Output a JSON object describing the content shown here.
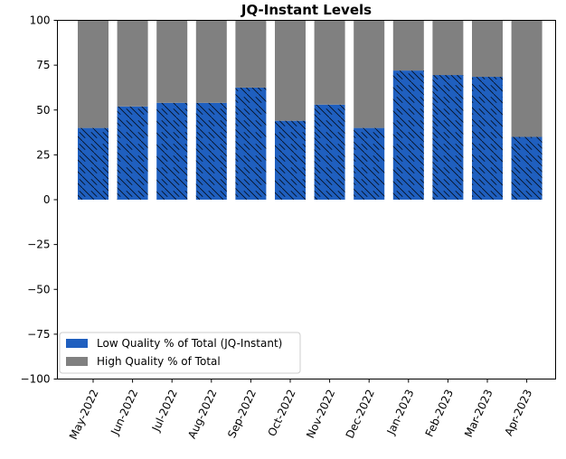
{
  "chart_data": {
    "type": "bar",
    "stacked": true,
    "title": "JQ-Instant Levels",
    "xlabel": "",
    "ylabel": "",
    "ylim": [
      -100,
      100
    ],
    "yticks": [
      100,
      75,
      50,
      25,
      0,
      -25,
      -50,
      -75,
      -100
    ],
    "ytick_labels": [
      "100",
      "75",
      "50",
      "25",
      "0",
      "−25",
      "−50",
      "−75",
      "−100"
    ],
    "categories": [
      "May-2022",
      "Jun-2022",
      "Jul-2022",
      "Aug-2022",
      "Sep-2022",
      "Oct-2022",
      "Nov-2022",
      "Dec-2022",
      "Jan-2023",
      "Feb-2023",
      "Mar-2023",
      "Apr-2023"
    ],
    "series": [
      {
        "name": "Low Quality % of Total (JQ-Instant)",
        "color": "#1f5fbf",
        "hatch": "diagonal",
        "values": [
          40,
          52,
          54,
          54,
          62.5,
          44,
          53,
          40,
          72,
          69.5,
          68.5,
          35
        ]
      },
      {
        "name": "High Quality % of Total",
        "color": "#808080",
        "values": [
          60,
          48,
          46,
          46,
          37.5,
          56,
          47,
          60,
          28,
          30.5,
          31.5,
          65
        ]
      }
    ],
    "legend_position": "lower-left",
    "grid": false
  }
}
